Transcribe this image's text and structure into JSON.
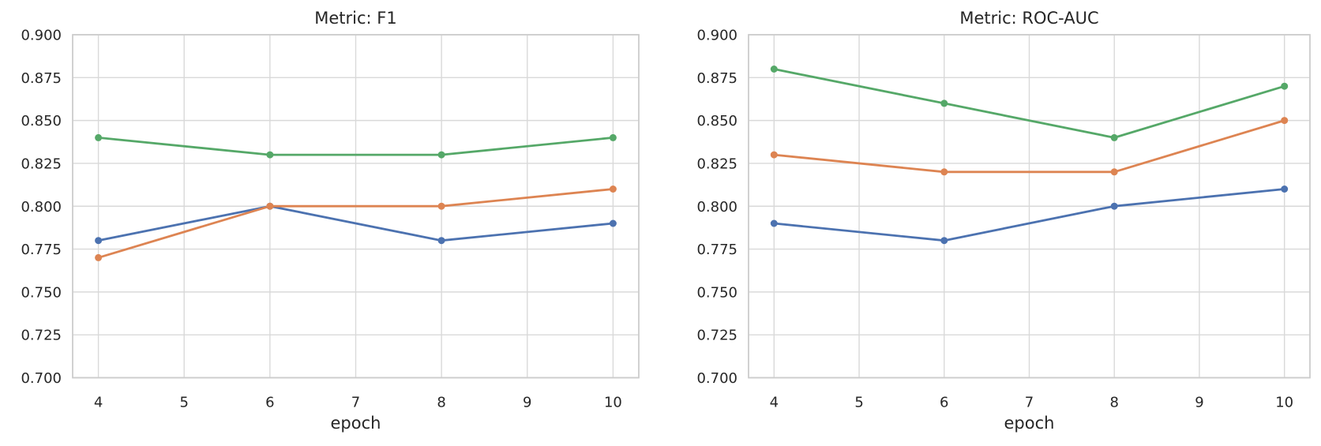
{
  "figure": {
    "background_color": "#ffffff",
    "text_color": "#262626",
    "grid_color": "#d9d9d9",
    "spine_color": "#cccccc"
  },
  "chart_data": [
    {
      "type": "line",
      "title": "Metric: F1",
      "xlabel": "epoch",
      "ylabel": "",
      "x": [
        4,
        6,
        8,
        10
      ],
      "xticks": [
        4,
        5,
        6,
        7,
        8,
        9,
        10
      ],
      "yticks": [
        "0.700",
        "0.725",
        "0.750",
        "0.775",
        "0.800",
        "0.825",
        "0.850",
        "0.875",
        "0.900"
      ],
      "xlim": [
        3.7,
        10.3
      ],
      "ylim": [
        0.7,
        0.9
      ],
      "grid": true,
      "legend": "none",
      "series": [
        {
          "name": "blue-series",
          "color": "#4C72B0",
          "values": [
            0.78,
            0.8,
            0.78,
            0.79
          ]
        },
        {
          "name": "orange-series",
          "color": "#DD8452",
          "values": [
            0.77,
            0.8,
            0.8,
            0.81
          ]
        },
        {
          "name": "green-series",
          "color": "#55A868",
          "values": [
            0.84,
            0.83,
            0.83,
            0.84
          ]
        }
      ]
    },
    {
      "type": "line",
      "title": "Metric: ROC-AUC",
      "xlabel": "epoch",
      "ylabel": "",
      "x": [
        4,
        6,
        8,
        10
      ],
      "xticks": [
        4,
        5,
        6,
        7,
        8,
        9,
        10
      ],
      "yticks": [
        "0.700",
        "0.725",
        "0.750",
        "0.775",
        "0.800",
        "0.825",
        "0.850",
        "0.875",
        "0.900"
      ],
      "xlim": [
        3.7,
        10.3
      ],
      "ylim": [
        0.7,
        0.9
      ],
      "grid": true,
      "legend": "none",
      "series": [
        {
          "name": "blue-series",
          "color": "#4C72B0",
          "values": [
            0.79,
            0.78,
            0.8,
            0.81
          ]
        },
        {
          "name": "orange-series",
          "color": "#DD8452",
          "values": [
            0.83,
            0.82,
            0.82,
            0.85
          ]
        },
        {
          "name": "green-series",
          "color": "#55A868",
          "values": [
            0.88,
            0.86,
            0.84,
            0.87
          ]
        }
      ]
    }
  ]
}
